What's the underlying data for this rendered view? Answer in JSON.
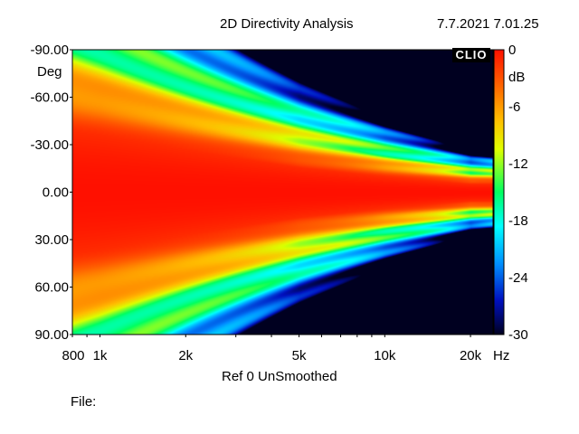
{
  "header": {
    "title": "2D Directivity Analysis",
    "datetime": "7.7.2021 7.01.25"
  },
  "logo_text": "CLIO",
  "footer": {
    "ref": "Ref 0   UnSmoothed",
    "file": "File:"
  },
  "chart_data": {
    "type": "heatmap",
    "title": "2D Directivity Analysis",
    "x_scale": "log",
    "xlim": [
      800,
      24000
    ],
    "x_unit_label": "Hz",
    "x_tick_labels": [
      "800",
      "1k",
      "2k",
      "5k",
      "10k",
      "20k"
    ],
    "x_ticks": [
      800,
      1000,
      2000,
      5000,
      10000,
      20000
    ],
    "y_axis_unit": "Deg",
    "ylim": [
      -90,
      90
    ],
    "y_tick_labels": [
      "-90.00",
      "-60.00",
      "-30.00",
      "0.00",
      "30.00",
      "60.00",
      "90.00"
    ],
    "y_ticks": [
      -90,
      -60,
      -30,
      0,
      30,
      60,
      90
    ],
    "colorbar": {
      "unit": "dB",
      "range": [
        -30,
        0
      ],
      "tick_labels": [
        "0",
        "-6",
        "-12",
        "-18",
        "-24",
        "-30"
      ],
      "ticks": [
        0,
        -6,
        -12,
        -18,
        -24,
        -30
      ],
      "colors": [
        "#ff2000",
        "#ff8c00",
        "#ffff00",
        "#00ff80",
        "#00ffff",
        "#0060ff",
        "#000030"
      ]
    },
    "description_model": {
      "on_axis_level_db": 0,
      "beamwidth_deg_at_freq_hz": [
        [
          800,
          85
        ],
        [
          1000,
          80
        ],
        [
          2000,
          60
        ],
        [
          5000,
          35
        ],
        [
          10000,
          22
        ],
        [
          20000,
          12
        ]
      ]
    }
  }
}
